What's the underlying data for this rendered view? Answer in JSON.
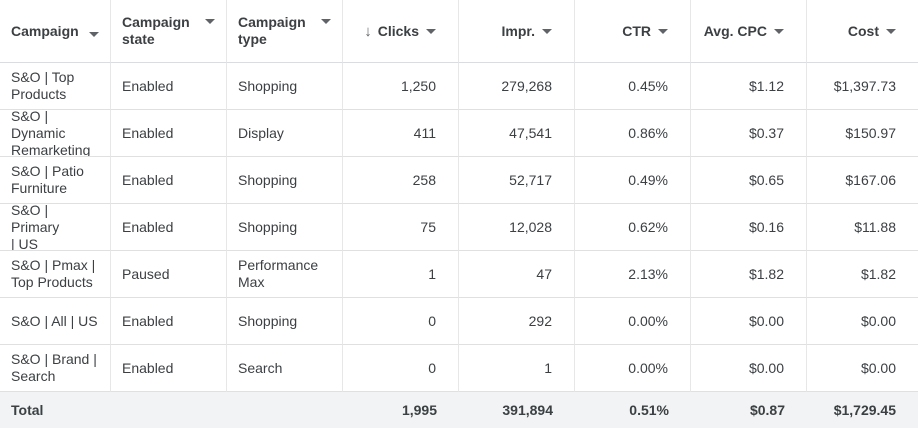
{
  "columns": [
    {
      "label": "Campaign"
    },
    {
      "label": "Campaign\nstate"
    },
    {
      "label": "Campaign\ntype"
    },
    {
      "label": "Clicks",
      "sort_icon": "arrow-down-icon",
      "sort_glyph": "↓"
    },
    {
      "label": "Impr."
    },
    {
      "label": "CTR"
    },
    {
      "label": "Avg. CPC"
    },
    {
      "label": "Cost"
    }
  ],
  "rows": [
    {
      "campaign": "S&O | Top\nProducts",
      "state": "Enabled",
      "type": "Shopping",
      "clicks": "1,250",
      "impr": "279,268",
      "ctr": "0.45%",
      "cpc": "$1.12",
      "cost": "$1,397.73"
    },
    {
      "campaign": "S&O | Dynamic\nRemarketing",
      "state": "Enabled",
      "type": "Display",
      "clicks": "411",
      "impr": "47,541",
      "ctr": "0.86%",
      "cpc": "$0.37",
      "cost": "$150.97"
    },
    {
      "campaign": "S&O | Patio\nFurniture",
      "state": "Enabled",
      "type": "Shopping",
      "clicks": "258",
      "impr": "52,717",
      "ctr": "0.49%",
      "cpc": "$0.65",
      "cost": "$167.06"
    },
    {
      "campaign": "S&O | Primary\n| US",
      "state": "Enabled",
      "type": "Shopping",
      "clicks": "75",
      "impr": "12,028",
      "ctr": "0.62%",
      "cpc": "$0.16",
      "cost": "$11.88"
    },
    {
      "campaign": "S&O | Pmax |\nTop Products",
      "state": "Paused",
      "type": "Performance\nMax",
      "clicks": "1",
      "impr": "47",
      "ctr": "2.13%",
      "cpc": "$1.82",
      "cost": "$1.82"
    },
    {
      "campaign": "S&O | All | US",
      "state": "Enabled",
      "type": "Shopping",
      "clicks": "0",
      "impr": "292",
      "ctr": "0.00%",
      "cpc": "$0.00",
      "cost": "$0.00"
    },
    {
      "campaign": "S&O | Brand |\nSearch",
      "state": "Enabled",
      "type": "Search",
      "clicks": "0",
      "impr": "1",
      "ctr": "0.00%",
      "cpc": "$0.00",
      "cost": "$0.00"
    }
  ],
  "total": {
    "label": "Total",
    "clicks": "1,995",
    "impr": "391,894",
    "ctr": "0.51%",
    "cpc": "$0.87",
    "cost": "$1,729.45"
  }
}
